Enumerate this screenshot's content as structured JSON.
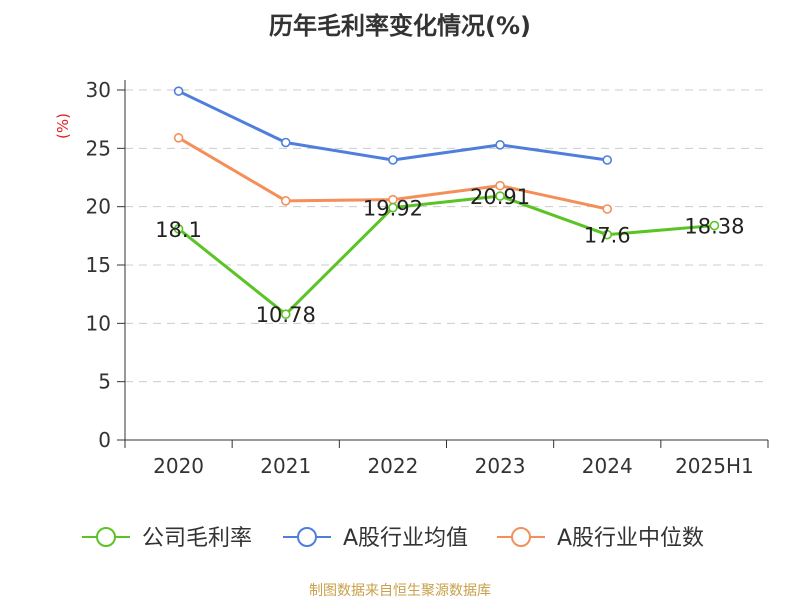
{
  "chart_data": {
    "type": "line",
    "title": "历年毛利率变化情况(%)",
    "ylabel": "(%)",
    "xlabel": "",
    "categories": [
      "2020",
      "2021",
      "2022",
      "2023",
      "2024",
      "2025H1"
    ],
    "ylim": [
      0,
      30
    ],
    "yticks": [
      0,
      5,
      10,
      15,
      20,
      25,
      30
    ],
    "grid": true,
    "legend_position": "bottom",
    "series": [
      {
        "name": "公司毛利率",
        "color": "#5bc424",
        "values": [
          18.1,
          10.78,
          19.92,
          20.91,
          17.6,
          18.38
        ],
        "labels": [
          "18.1",
          "10.78",
          "19.92",
          "20.91",
          "17.6",
          "18.38"
        ]
      },
      {
        "name": "A股行业均值",
        "color": "#4f7fdb",
        "values": [
          29.9,
          25.5,
          24.0,
          25.3,
          24.0,
          null
        ]
      },
      {
        "name": "A股行业中位数",
        "color": "#f58f5a",
        "values": [
          25.9,
          20.5,
          20.6,
          21.8,
          19.8,
          null
        ]
      }
    ]
  },
  "source_note": "制图数据来自恒生聚源数据库"
}
